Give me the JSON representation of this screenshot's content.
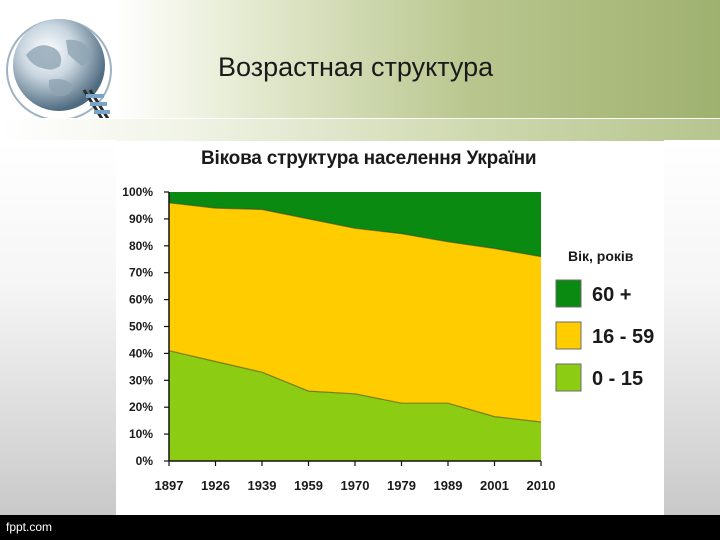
{
  "slide": {
    "title": "Возрастная структура",
    "footer": "fppt.com"
  },
  "colors": {
    "old": "#0b8a12",
    "working": "#ffcc00",
    "young": "#8ccc12"
  },
  "chart_data": {
    "type": "area",
    "title": "Вікова структура населення України",
    "x": [
      "1897",
      "1926",
      "1939",
      "1959",
      "1970",
      "1979",
      "1989",
      "2001",
      "2010"
    ],
    "y_ticks": [
      "0%",
      "10%",
      "20%",
      "30%",
      "40%",
      "50%",
      "60%",
      "70%",
      "80%",
      "90%",
      "100%"
    ],
    "ylim": [
      0,
      100
    ],
    "stacked": true,
    "legend_title": "Вік, років",
    "legend_position": "right",
    "series": [
      {
        "name": "0 - 15",
        "color": "#8ccc12",
        "values": [
          41,
          37,
          33,
          26,
          25,
          21.5,
          21.5,
          16.5,
          14.5
        ]
      },
      {
        "name": "16 - 59",
        "color": "#ffcc00",
        "values": [
          55,
          57,
          60.5,
          64,
          61.5,
          63,
          60,
          62.5,
          61.5
        ]
      },
      {
        "name": "60 +",
        "color": "#0b8a12",
        "values": [
          4,
          6,
          6.5,
          10,
          13.5,
          15.5,
          18.5,
          21,
          24
        ]
      }
    ]
  }
}
